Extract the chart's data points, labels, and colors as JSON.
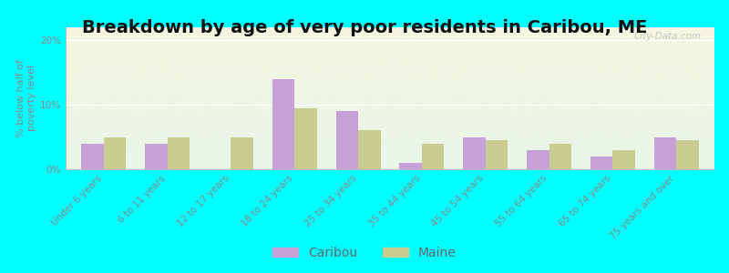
{
  "title": "Breakdown by age of very poor residents in Caribou, ME",
  "ylabel": "% below half of\npoverty level",
  "categories": [
    "Under 6 years",
    "6 to 11 years",
    "12 to 17 years",
    "18 to 24 years",
    "25 to 34 years",
    "35 to 44 years",
    "45 to 54 years",
    "55 to 64 years",
    "65 to 74 years",
    "75 years and over"
  ],
  "caribou": [
    4.0,
    4.0,
    0.0,
    14.0,
    9.0,
    1.0,
    5.0,
    3.0,
    2.0,
    5.0
  ],
  "maine": [
    5.0,
    5.0,
    5.0,
    9.5,
    6.0,
    4.0,
    4.5,
    4.0,
    3.0,
    4.5
  ],
  "caribou_color": "#c8a0d8",
  "maine_color": "#c8cc90",
  "background_top": "#f5f5e0",
  "background_bottom": "#e8f5e8",
  "outer_bg": "#00ffff",
  "ylim": [
    0,
    22
  ],
  "yticks": [
    0,
    10,
    20
  ],
  "ytick_labels": [
    "0%",
    "10%",
    "20%"
  ],
  "bar_width": 0.35,
  "title_fontsize": 14,
  "axis_label_fontsize": 8,
  "tick_fontsize": 7.5,
  "legend_fontsize": 10,
  "watermark": "City-Data.com"
}
